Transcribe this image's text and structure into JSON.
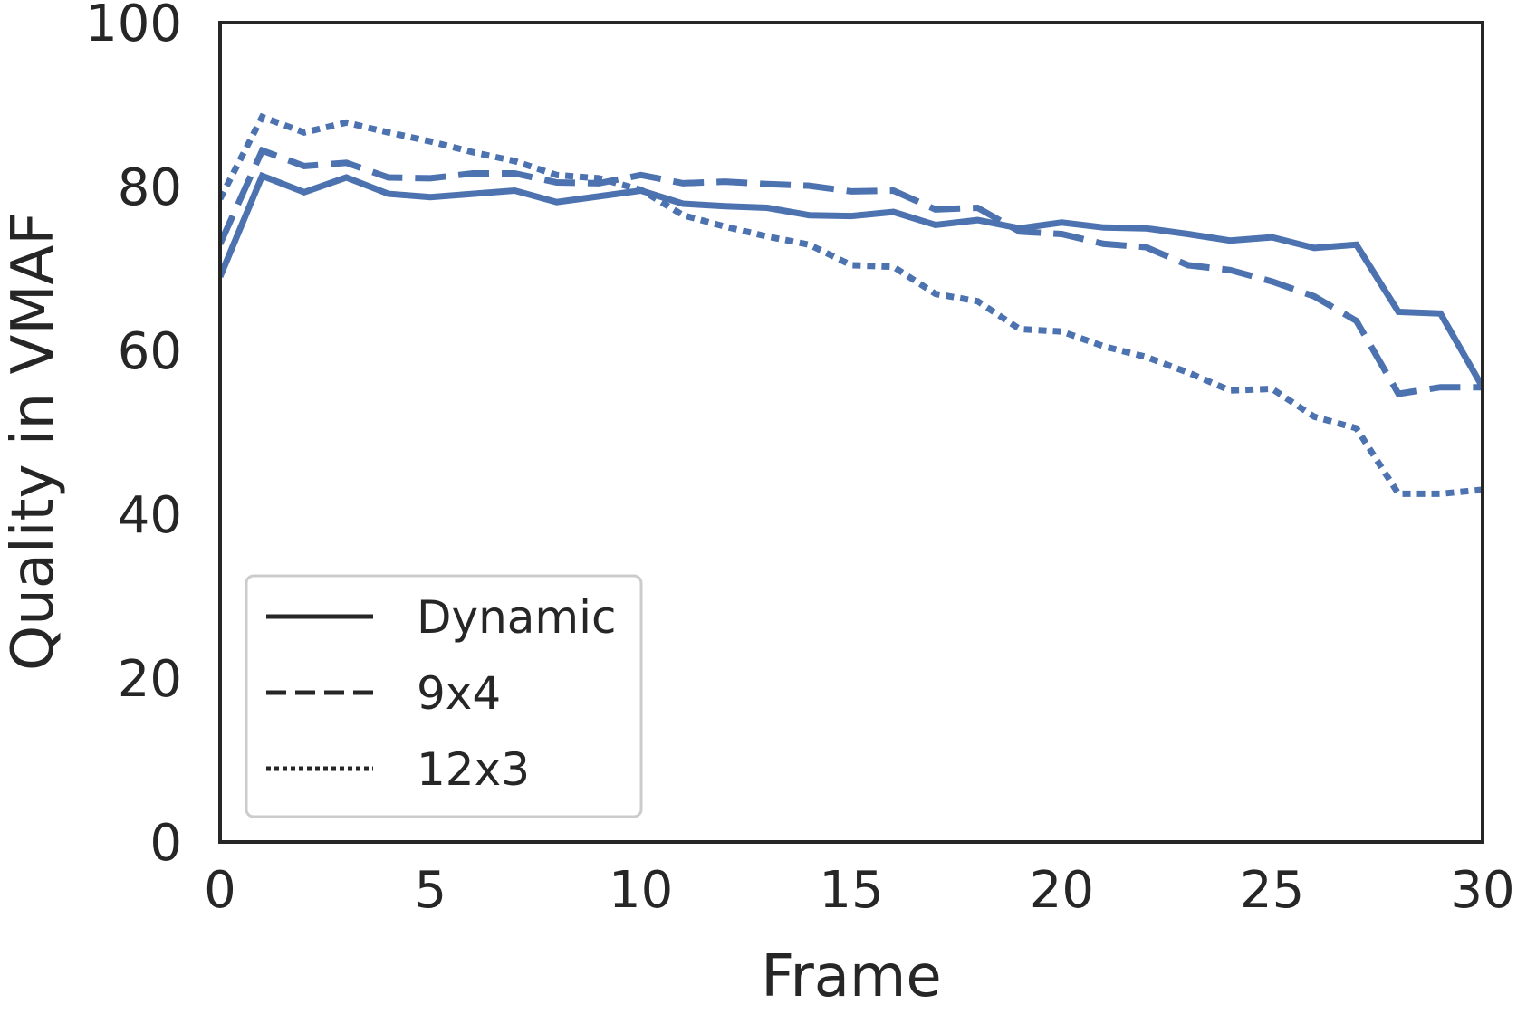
{
  "chart_data": {
    "type": "line",
    "title": "",
    "xlabel": "Frame",
    "ylabel": "Quality in VMAF",
    "xlim": [
      0,
      30
    ],
    "ylim": [
      0,
      100
    ],
    "xticks": [
      0,
      5,
      10,
      15,
      20,
      25,
      30
    ],
    "yticks": [
      0,
      20,
      40,
      60,
      80,
      100
    ],
    "grid": false,
    "legend_position": "lower-left",
    "line_color": "#4c72b0",
    "x": [
      0,
      1,
      2,
      3,
      4,
      5,
      6,
      7,
      8,
      9,
      10,
      11,
      12,
      13,
      14,
      15,
      16,
      17,
      18,
      19,
      20,
      21,
      22,
      23,
      24,
      25,
      26,
      27,
      28,
      29,
      30
    ],
    "series": [
      {
        "name": "Dynamic",
        "style": "solid",
        "values": [
          69.0,
          81.3,
          79.3,
          81.1,
          79.1,
          78.7,
          79.1,
          79.5,
          78.1,
          78.8,
          79.5,
          77.9,
          77.6,
          77.4,
          76.5,
          76.4,
          76.9,
          75.3,
          75.9,
          74.9,
          75.6,
          75.0,
          74.9,
          74.2,
          73.4,
          73.8,
          72.5,
          72.9,
          64.7,
          64.5,
          55.5
        ]
      },
      {
        "name": "9x4",
        "style": "dashed",
        "values": [
          73.0,
          84.4,
          82.5,
          82.9,
          81.1,
          81.0,
          81.6,
          81.6,
          80.5,
          80.4,
          81.4,
          80.4,
          80.6,
          80.3,
          80.1,
          79.4,
          79.5,
          77.2,
          77.4,
          74.5,
          74.2,
          73.0,
          72.6,
          70.4,
          69.8,
          68.4,
          66.6,
          63.6,
          54.7,
          55.5,
          55.5
        ]
      },
      {
        "name": "12x3",
        "style": "dotted",
        "values": [
          78.5,
          88.5,
          86.6,
          87.8,
          86.6,
          85.5,
          84.2,
          83.1,
          81.4,
          81.0,
          79.6,
          76.5,
          75.1,
          73.9,
          72.9,
          70.4,
          70.2,
          66.9,
          66.0,
          62.6,
          62.3,
          60.5,
          59.2,
          57.3,
          55.1,
          55.3,
          51.9,
          50.5,
          42.5,
          42.5,
          43.0
        ]
      }
    ]
  }
}
